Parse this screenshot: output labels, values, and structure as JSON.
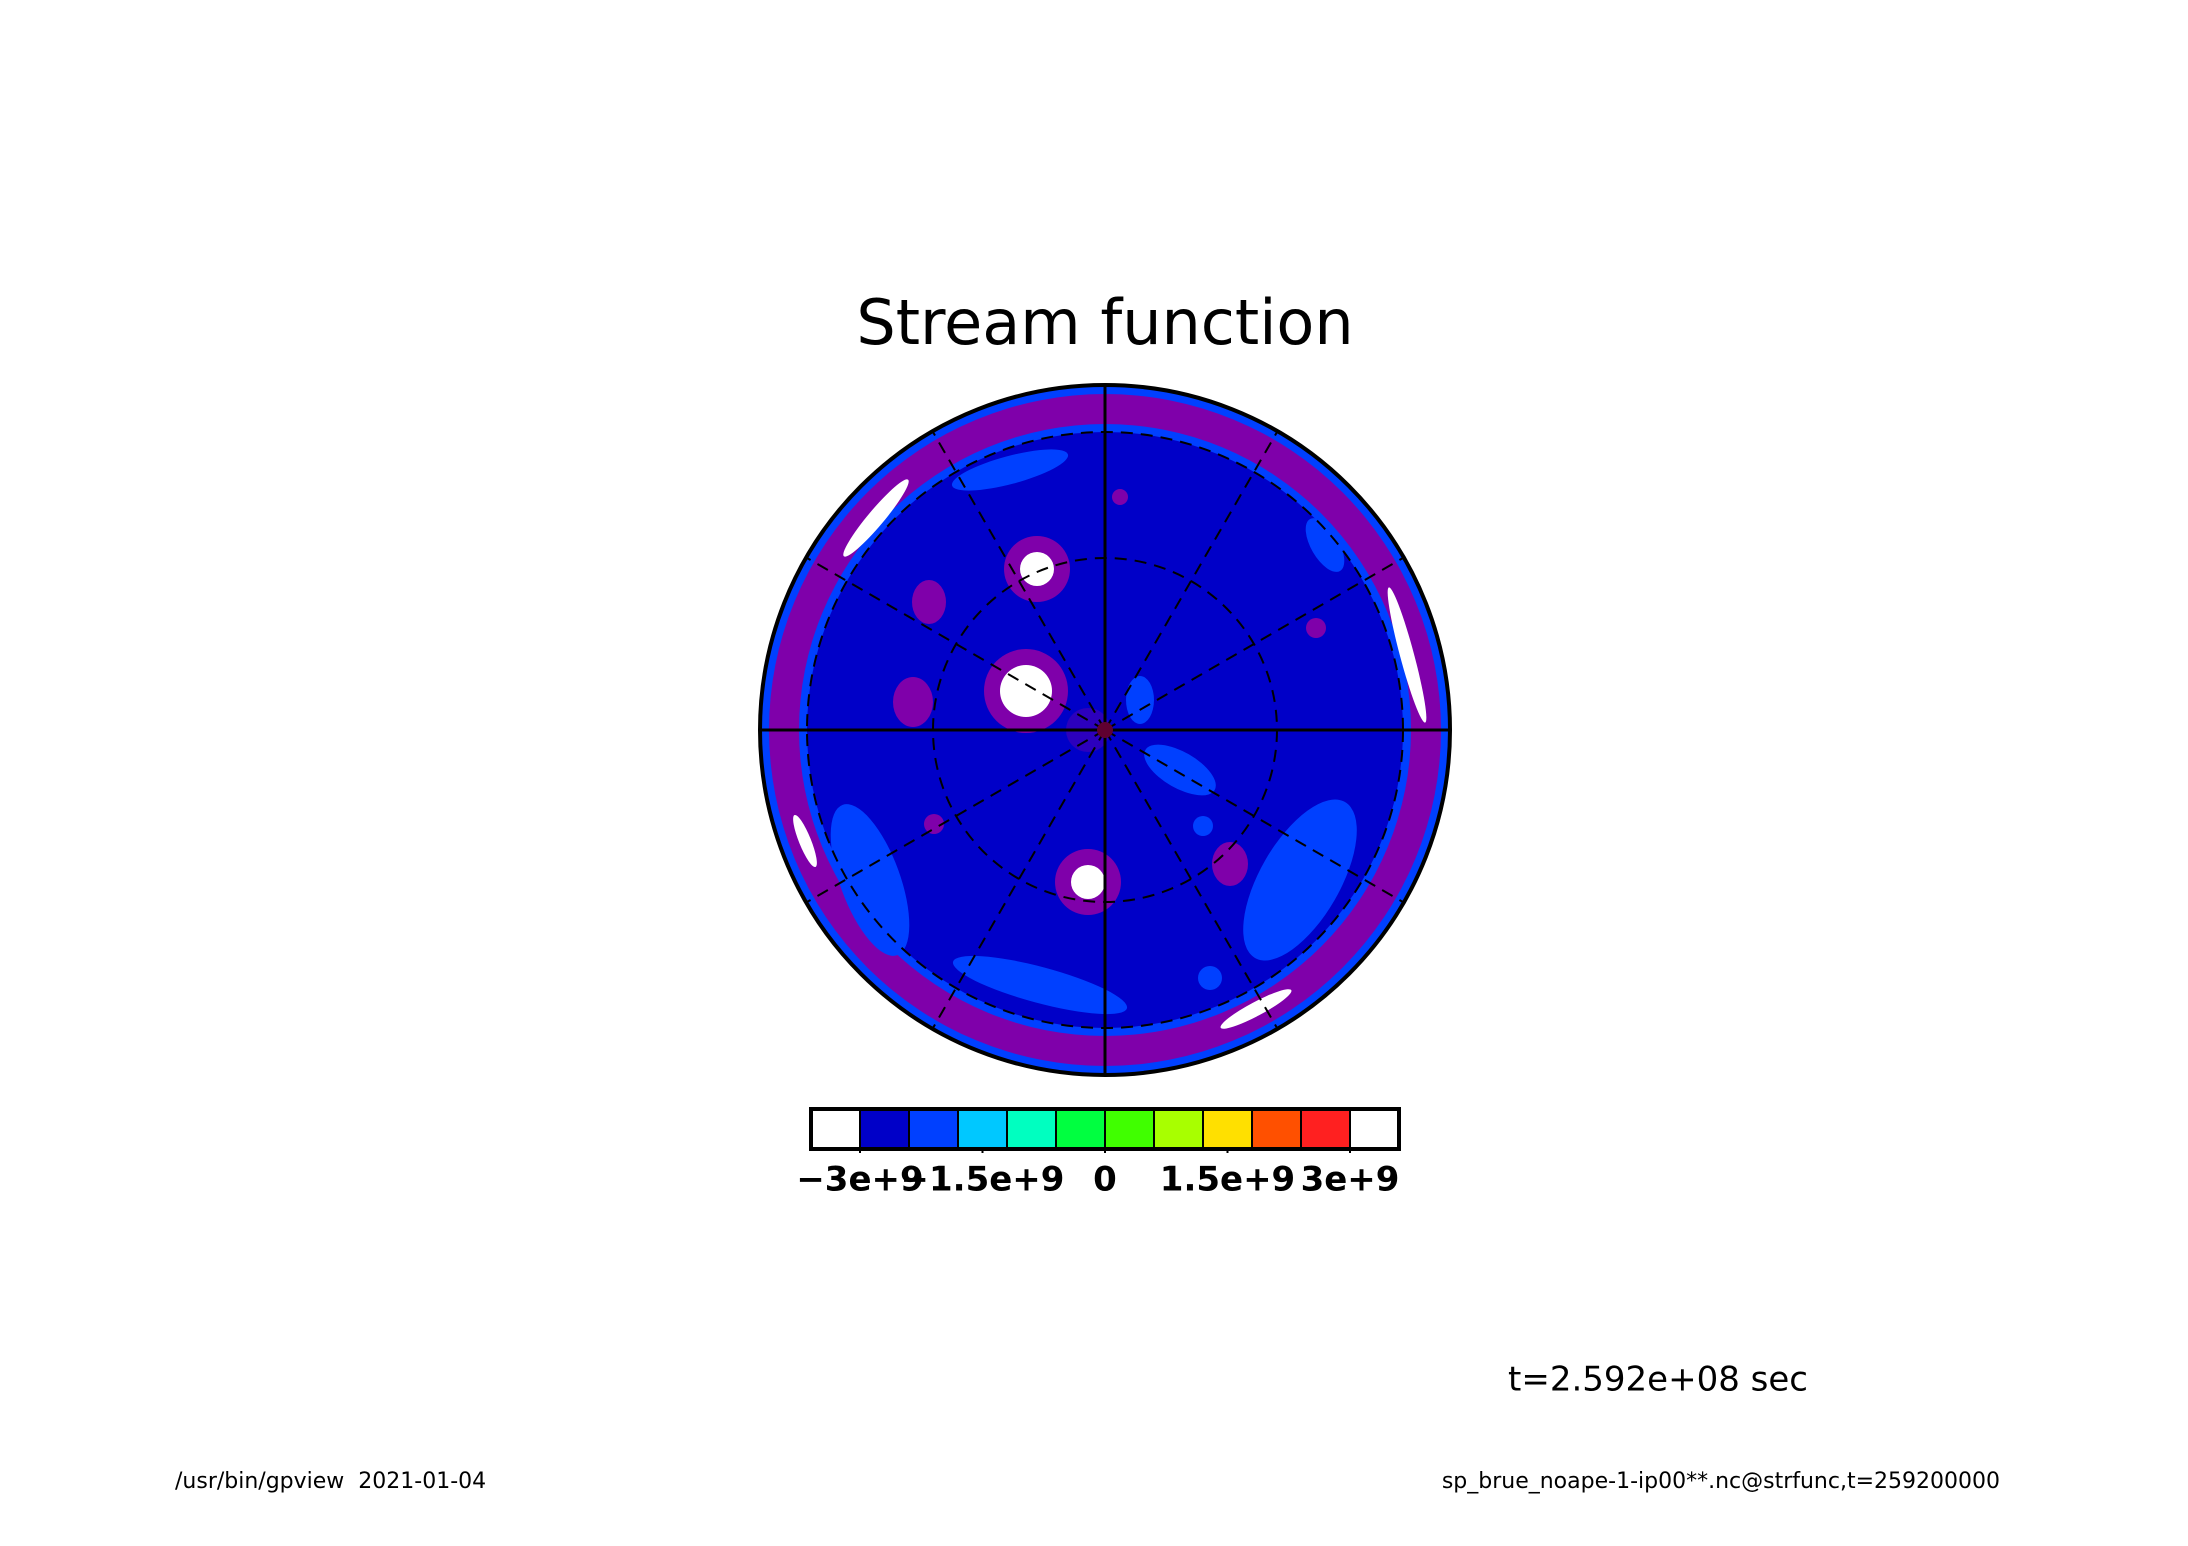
{
  "chart_data": {
    "type": "contour",
    "title": "Stream function",
    "colorbar": {
      "colors": [
        "#ffffff",
        "#0000c8",
        "#0040ff",
        "#00c8ff",
        "#00ffc0",
        "#00ff40",
        "#40ff00",
        "#a8ff00",
        "#ffe000",
        "#ff5000",
        "#ff2020",
        "#ffffff"
      ],
      "range": [
        -3000000000,
        3000000000
      ],
      "ticks": [
        {
          "value": -3000000000,
          "label": "−3e+9"
        },
        {
          "value": -1500000000,
          "label": "−1.5e+9"
        },
        0,
        {
          "value": 1500000000,
          "label": "1.5e+9"
        },
        {
          "value": 3000000000,
          "label": "3e+9"
        }
      ]
    },
    "time_label": "t=2.592e+08 sec",
    "footer": {
      "left": "/usr/bin/gpview  2021-01-04",
      "right": "sp_brue_noape-1-ip00**.nc@strfunc,t=259200000"
    }
  }
}
